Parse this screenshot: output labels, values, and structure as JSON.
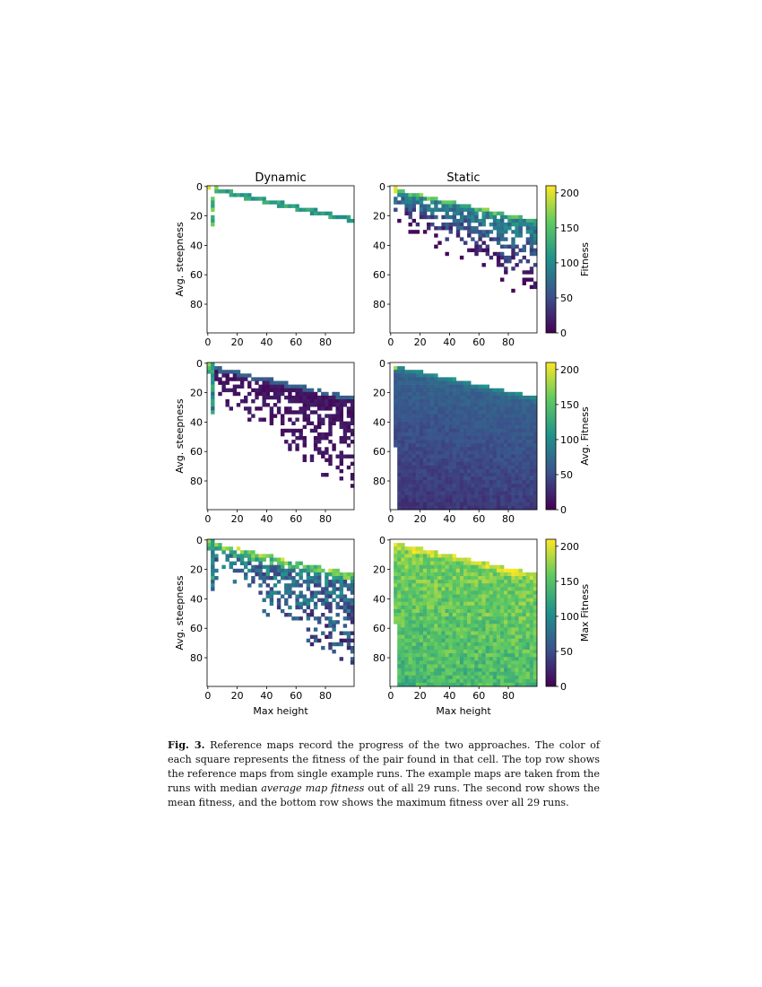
{
  "figure": {
    "column_titles": [
      "Dynamic",
      "Static"
    ],
    "y_axis_label": "Avg. steepness",
    "x_axis_label": "Max height",
    "colorbar_labels": [
      "Fitness",
      "Avg. Fitness",
      "Max Fitness"
    ],
    "colorbar_ticks": [
      "0",
      "50",
      "100",
      "150",
      "200"
    ],
    "x_ticks": [
      "0",
      "20",
      "40",
      "60",
      "80"
    ],
    "y_ticks": [
      "0",
      "20",
      "40",
      "60",
      "80"
    ],
    "colormap": "viridis",
    "colors": [
      "#440154",
      "#3b528b",
      "#21918c",
      "#5ec962",
      "#fde725"
    ]
  },
  "chart_data": [
    {
      "type": "heatmap",
      "row": "top",
      "title": "Dynamic",
      "xlabel": "",
      "ylabel": "Avg. steepness",
      "xlim": [
        0,
        100
      ],
      "ylim": [
        100,
        0
      ],
      "colorbar": null
    },
    {
      "type": "heatmap",
      "row": "top",
      "title": "Static",
      "xlabel": "",
      "ylabel": "",
      "xlim": [
        0,
        100
      ],
      "ylim": [
        100,
        0
      ],
      "colorbar": {
        "label": "Fitness",
        "range": [
          0,
          210
        ]
      }
    },
    {
      "type": "heatmap",
      "row": "middle",
      "title": "",
      "xlabel": "",
      "ylabel": "Avg. steepness",
      "xlim": [
        0,
        100
      ],
      "ylim": [
        100,
        0
      ],
      "colorbar": null
    },
    {
      "type": "heatmap",
      "row": "middle",
      "title": "",
      "xlabel": "",
      "ylabel": "",
      "xlim": [
        0,
        100
      ],
      "ylim": [
        100,
        0
      ],
      "colorbar": {
        "label": "Avg. Fitness",
        "range": [
          0,
          210
        ]
      }
    },
    {
      "type": "heatmap",
      "row": "bottom",
      "title": "",
      "xlabel": "Max height",
      "ylabel": "Avg. steepness",
      "xlim": [
        0,
        100
      ],
      "ylim": [
        100,
        0
      ],
      "colorbar": null
    },
    {
      "type": "heatmap",
      "row": "bottom",
      "title": "",
      "xlabel": "Max height",
      "ylabel": "",
      "xlim": [
        0,
        100
      ],
      "ylim": [
        100,
        0
      ],
      "colorbar": {
        "label": "Max Fitness",
        "range": [
          0,
          210
        ]
      }
    }
  ],
  "caption": {
    "label": "Fig. 3.",
    "text_1": " Reference maps record the progress of the two approaches. The color of each square represents the fitness of the pair found in that cell. The top row shows the reference maps from single example runs. The example maps are taken from the runs with median ",
    "emphasis": "average map fitness",
    "text_2": " out of all 29 runs. The second row shows the mean fitness, and the bottom row shows the maximum fitness over all 29 runs."
  }
}
